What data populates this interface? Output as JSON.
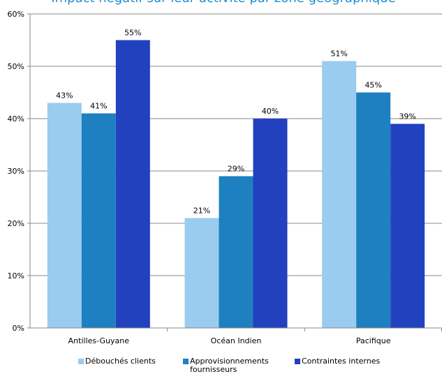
{
  "chart_data": {
    "type": "bar",
    "title": "Impact négatif sur leur activité par zone géographique",
    "categories": [
      "Antilles-Guyane",
      "Océan Indien",
      "Pacifique"
    ],
    "series": [
      {
        "name": "Débouchés clients",
        "values": [
          43,
          21,
          51
        ],
        "labels": [
          "43%",
          "21%",
          "51%"
        ],
        "color": "#99ccee"
      },
      {
        "name": "Approvisionnements fournisseurs",
        "values": [
          41,
          29,
          45
        ],
        "labels": [
          "41%",
          "29%",
          "45%"
        ],
        "color": "#1e80c0"
      },
      {
        "name": "Contraintes internes",
        "values": [
          55,
          40,
          39
        ],
        "labels": [
          "55%",
          "40%",
          "39%"
        ],
        "color": "#2241bf"
      }
    ],
    "ylim": [
      0,
      60
    ],
    "yticks": [
      "0%",
      "10%",
      "20%",
      "30%",
      "40%",
      "50%",
      "60%"
    ],
    "grid": true,
    "legend_position": "bottom"
  }
}
